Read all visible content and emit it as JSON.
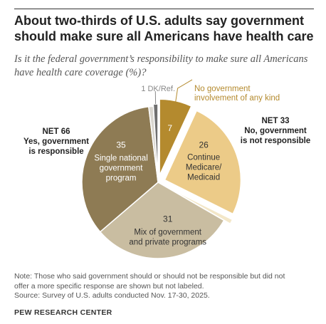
{
  "title": "About two-thirds of U.S. adults say government should make sure all Americans have health care",
  "subtitle": "Is it the federal government’s responsibility to make sure all Americans have health care coverage (%)?",
  "net_left": {
    "line1": "NET 66",
    "line2": "Yes, government",
    "line3": "is responsible"
  },
  "net_right": {
    "line1": "NET 33",
    "line2": "No, government",
    "line3": "is not responsible"
  },
  "note_lines": [
    "Note: Those who said government should or should not be responsible but did not",
    "offer a more specific response are shown but not labeled.",
    "Source: Survey of U.S. adults conducted Nov. 17-30, 2025."
  ],
  "brand": "PEW RESEARCH CENTER",
  "chart_data": {
    "type": "pie",
    "slices": [
      {
        "label": "No government involvement of any kind",
        "value": 7,
        "color": "#b48a2e",
        "group": "no"
      },
      {
        "label": "Continue Medicare/ Medicaid",
        "value": 26,
        "color": "#eccb88",
        "group": "no"
      },
      {
        "label": "",
        "value": 1,
        "color": "#f3e7c8",
        "group": "no"
      },
      {
        "label": "Mix of government and private programs",
        "value": 31,
        "color": "#c9bda1",
        "group": "yes"
      },
      {
        "label": "Single national government program",
        "value": 35,
        "color": "#8e7b54",
        "group": "yes"
      },
      {
        "label": "",
        "value": 1,
        "color": "#d9d6cf",
        "group": "yes"
      },
      {
        "label": "DK/Ref.",
        "value": 1,
        "color": "#6f6f6f",
        "group": "dk"
      }
    ],
    "label_lines": {
      "no_gov": [
        "No government",
        "involvement of any kind"
      ],
      "medicare": [
        "Continue",
        "Medicare/",
        "Medicaid"
      ],
      "mix": [
        "Mix of government",
        "and private programs"
      ],
      "single": [
        "Single national",
        "government",
        "program"
      ],
      "dk": "1 DK/Ref."
    }
  }
}
